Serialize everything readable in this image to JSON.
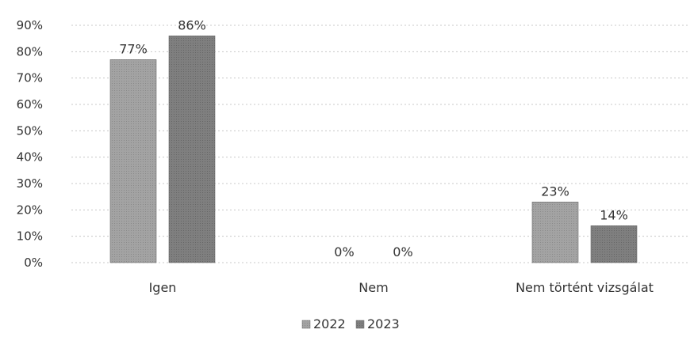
{
  "chart_data": {
    "type": "bar",
    "categories": [
      "Igen",
      "Nem",
      "Nem történt vizsgálat"
    ],
    "series": [
      {
        "name": "2022",
        "values": [
          77,
          0,
          23
        ],
        "labels": [
          "77%",
          "0%",
          "23%"
        ],
        "color": "#9a9a9a"
      },
      {
        "name": "2023",
        "values": [
          86,
          0,
          14
        ],
        "labels": [
          "86%",
          "0%",
          "14%"
        ],
        "color": "#777777"
      }
    ],
    "ylim": [
      0,
      90
    ],
    "yticks": [
      0,
      10,
      20,
      30,
      40,
      50,
      60,
      70,
      80,
      90
    ],
    "ytick_labels": [
      "0%",
      "10%",
      "20%",
      "30%",
      "40%",
      "50%",
      "60%",
      "70%",
      "80%",
      "90%"
    ],
    "grid": true,
    "legend_position": "bottom",
    "title": "",
    "xlabel": "",
    "ylabel": ""
  }
}
